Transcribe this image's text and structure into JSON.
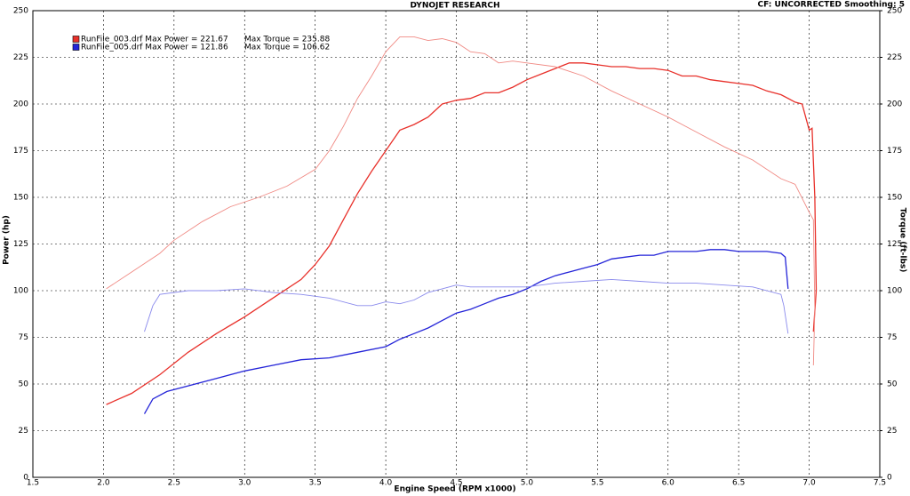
{
  "chart_data": {
    "type": "line",
    "title": "DYNOJET RESEARCH",
    "subtitle": "CF: UNCORRECTED  Smoothing: 5",
    "x_label": "Engine Speed (RPM x1000)",
    "y_label": "Power (hp)",
    "y2_label": "Torque (ft-lbs)",
    "grid": true,
    "legend": "top-left",
    "xlim": [
      1.5,
      7.5
    ],
    "xticks": [
      1.5,
      {
        "value": 2,
        "label": "2.0"
      },
      2.5,
      {
        "value": 3,
        "label": "3.0"
      },
      3.5,
      {
        "value": 4,
        "label": "4.0"
      },
      4.5,
      {
        "value": 5,
        "label": "5.0"
      },
      5.5,
      {
        "value": 6,
        "label": "6.0"
      },
      6.5,
      {
        "value": 7,
        "label": "7.0"
      },
      7.5
    ],
    "ylim": [
      0,
      250
    ],
    "yticks": [
      0,
      25,
      50,
      75,
      100,
      125,
      150,
      175,
      200,
      225,
      250
    ],
    "y2lim": [
      0,
      250
    ],
    "y2ticks": [
      0,
      25,
      50,
      75,
      100,
      125,
      150,
      175,
      200,
      225,
      250
    ],
    "series": [
      {
        "name": "RunFile_003.drf Max Power = 221.67",
        "color": "#e8302a",
        "x": [
          2.02,
          2.2,
          2.4,
          2.6,
          2.8,
          3.0,
          3.2,
          3.4,
          3.5,
          3.6,
          3.7,
          3.8,
          3.9,
          4.0,
          4.1,
          4.2,
          4.3,
          4.4,
          4.5,
          4.6,
          4.7,
          4.8,
          4.9,
          5.0,
          5.1,
          5.2,
          5.3,
          5.4,
          5.5,
          5.6,
          5.7,
          5.8,
          5.9,
          6.0,
          6.1,
          6.2,
          6.3,
          6.4,
          6.5,
          6.6,
          6.7,
          6.8,
          6.9,
          6.95,
          7.0,
          7.02,
          7.04,
          7.05,
          7.03
        ],
        "values": [
          39,
          45,
          55,
          67,
          77,
          86,
          96,
          106,
          114,
          124,
          138,
          152,
          164,
          175,
          186,
          189,
          193,
          200,
          202,
          203,
          206,
          206,
          209,
          213,
          216,
          219,
          222,
          222,
          221,
          220,
          220,
          219,
          219,
          218,
          215,
          215,
          213,
          212,
          211,
          210,
          207,
          205,
          201,
          200,
          186,
          187,
          150,
          100,
          78
        ]
      },
      {
        "name": "Max Torque = 235.88",
        "color": "#f08a84",
        "axis": "y2",
        "x": [
          2.02,
          2.2,
          2.4,
          2.5,
          2.7,
          2.9,
          3.1,
          3.3,
          3.5,
          3.6,
          3.7,
          3.8,
          3.9,
          4.0,
          4.1,
          4.2,
          4.3,
          4.4,
          4.5,
          4.6,
          4.7,
          4.8,
          4.9,
          5.0,
          5.2,
          5.4,
          5.6,
          5.8,
          6.0,
          6.2,
          6.4,
          6.6,
          6.8,
          6.9,
          7.0,
          7.03,
          7.04,
          7.03
        ],
        "values": [
          101,
          110,
          120,
          127,
          137,
          145,
          150,
          156,
          165,
          175,
          188,
          203,
          215,
          228,
          236,
          236,
          234,
          235,
          233,
          228,
          227,
          222,
          223,
          222,
          220,
          215,
          207,
          200,
          193,
          185,
          177,
          170,
          160,
          157,
          142,
          138,
          90,
          60
        ]
      },
      {
        "name": "RunFile_005.drf Max Power = 121.86",
        "color": "#2424d8",
        "x": [
          2.29,
          2.35,
          2.45,
          2.6,
          2.8,
          3.0,
          3.2,
          3.4,
          3.6,
          3.8,
          4.0,
          4.1,
          4.2,
          4.3,
          4.4,
          4.5,
          4.6,
          4.7,
          4.8,
          4.9,
          5.0,
          5.1,
          5.2,
          5.3,
          5.4,
          5.5,
          5.6,
          5.7,
          5.8,
          5.9,
          6.0,
          6.1,
          6.2,
          6.3,
          6.4,
          6.5,
          6.6,
          6.7,
          6.8,
          6.83,
          6.85
        ],
        "values": [
          34,
          42,
          46,
          49,
          53,
          57,
          60,
          63,
          64,
          67,
          70,
          74,
          77,
          80,
          84,
          88,
          90,
          93,
          96,
          98,
          101,
          105,
          108,
          110,
          112,
          114,
          117,
          118,
          119,
          119,
          121,
          121,
          121,
          122,
          122,
          121,
          121,
          121,
          120,
          118,
          101
        ]
      },
      {
        "name": "Max Torque = 106.62",
        "color": "#8a8aec",
        "axis": "y2",
        "x": [
          2.29,
          2.35,
          2.4,
          2.6,
          2.8,
          3.0,
          3.2,
          3.4,
          3.6,
          3.8,
          3.9,
          4.0,
          4.1,
          4.2,
          4.3,
          4.4,
          4.5,
          4.6,
          4.8,
          5.0,
          5.2,
          5.4,
          5.6,
          5.8,
          6.0,
          6.2,
          6.4,
          6.6,
          6.8,
          6.82,
          6.85
        ],
        "values": [
          78,
          92,
          98,
          100,
          100,
          101,
          99,
          98,
          96,
          92,
          92,
          94,
          93,
          95,
          99,
          101,
          103,
          102,
          102,
          102,
          104,
          105,
          106,
          105,
          104,
          104,
          103,
          102,
          98,
          92,
          77
        ]
      }
    ]
  }
}
